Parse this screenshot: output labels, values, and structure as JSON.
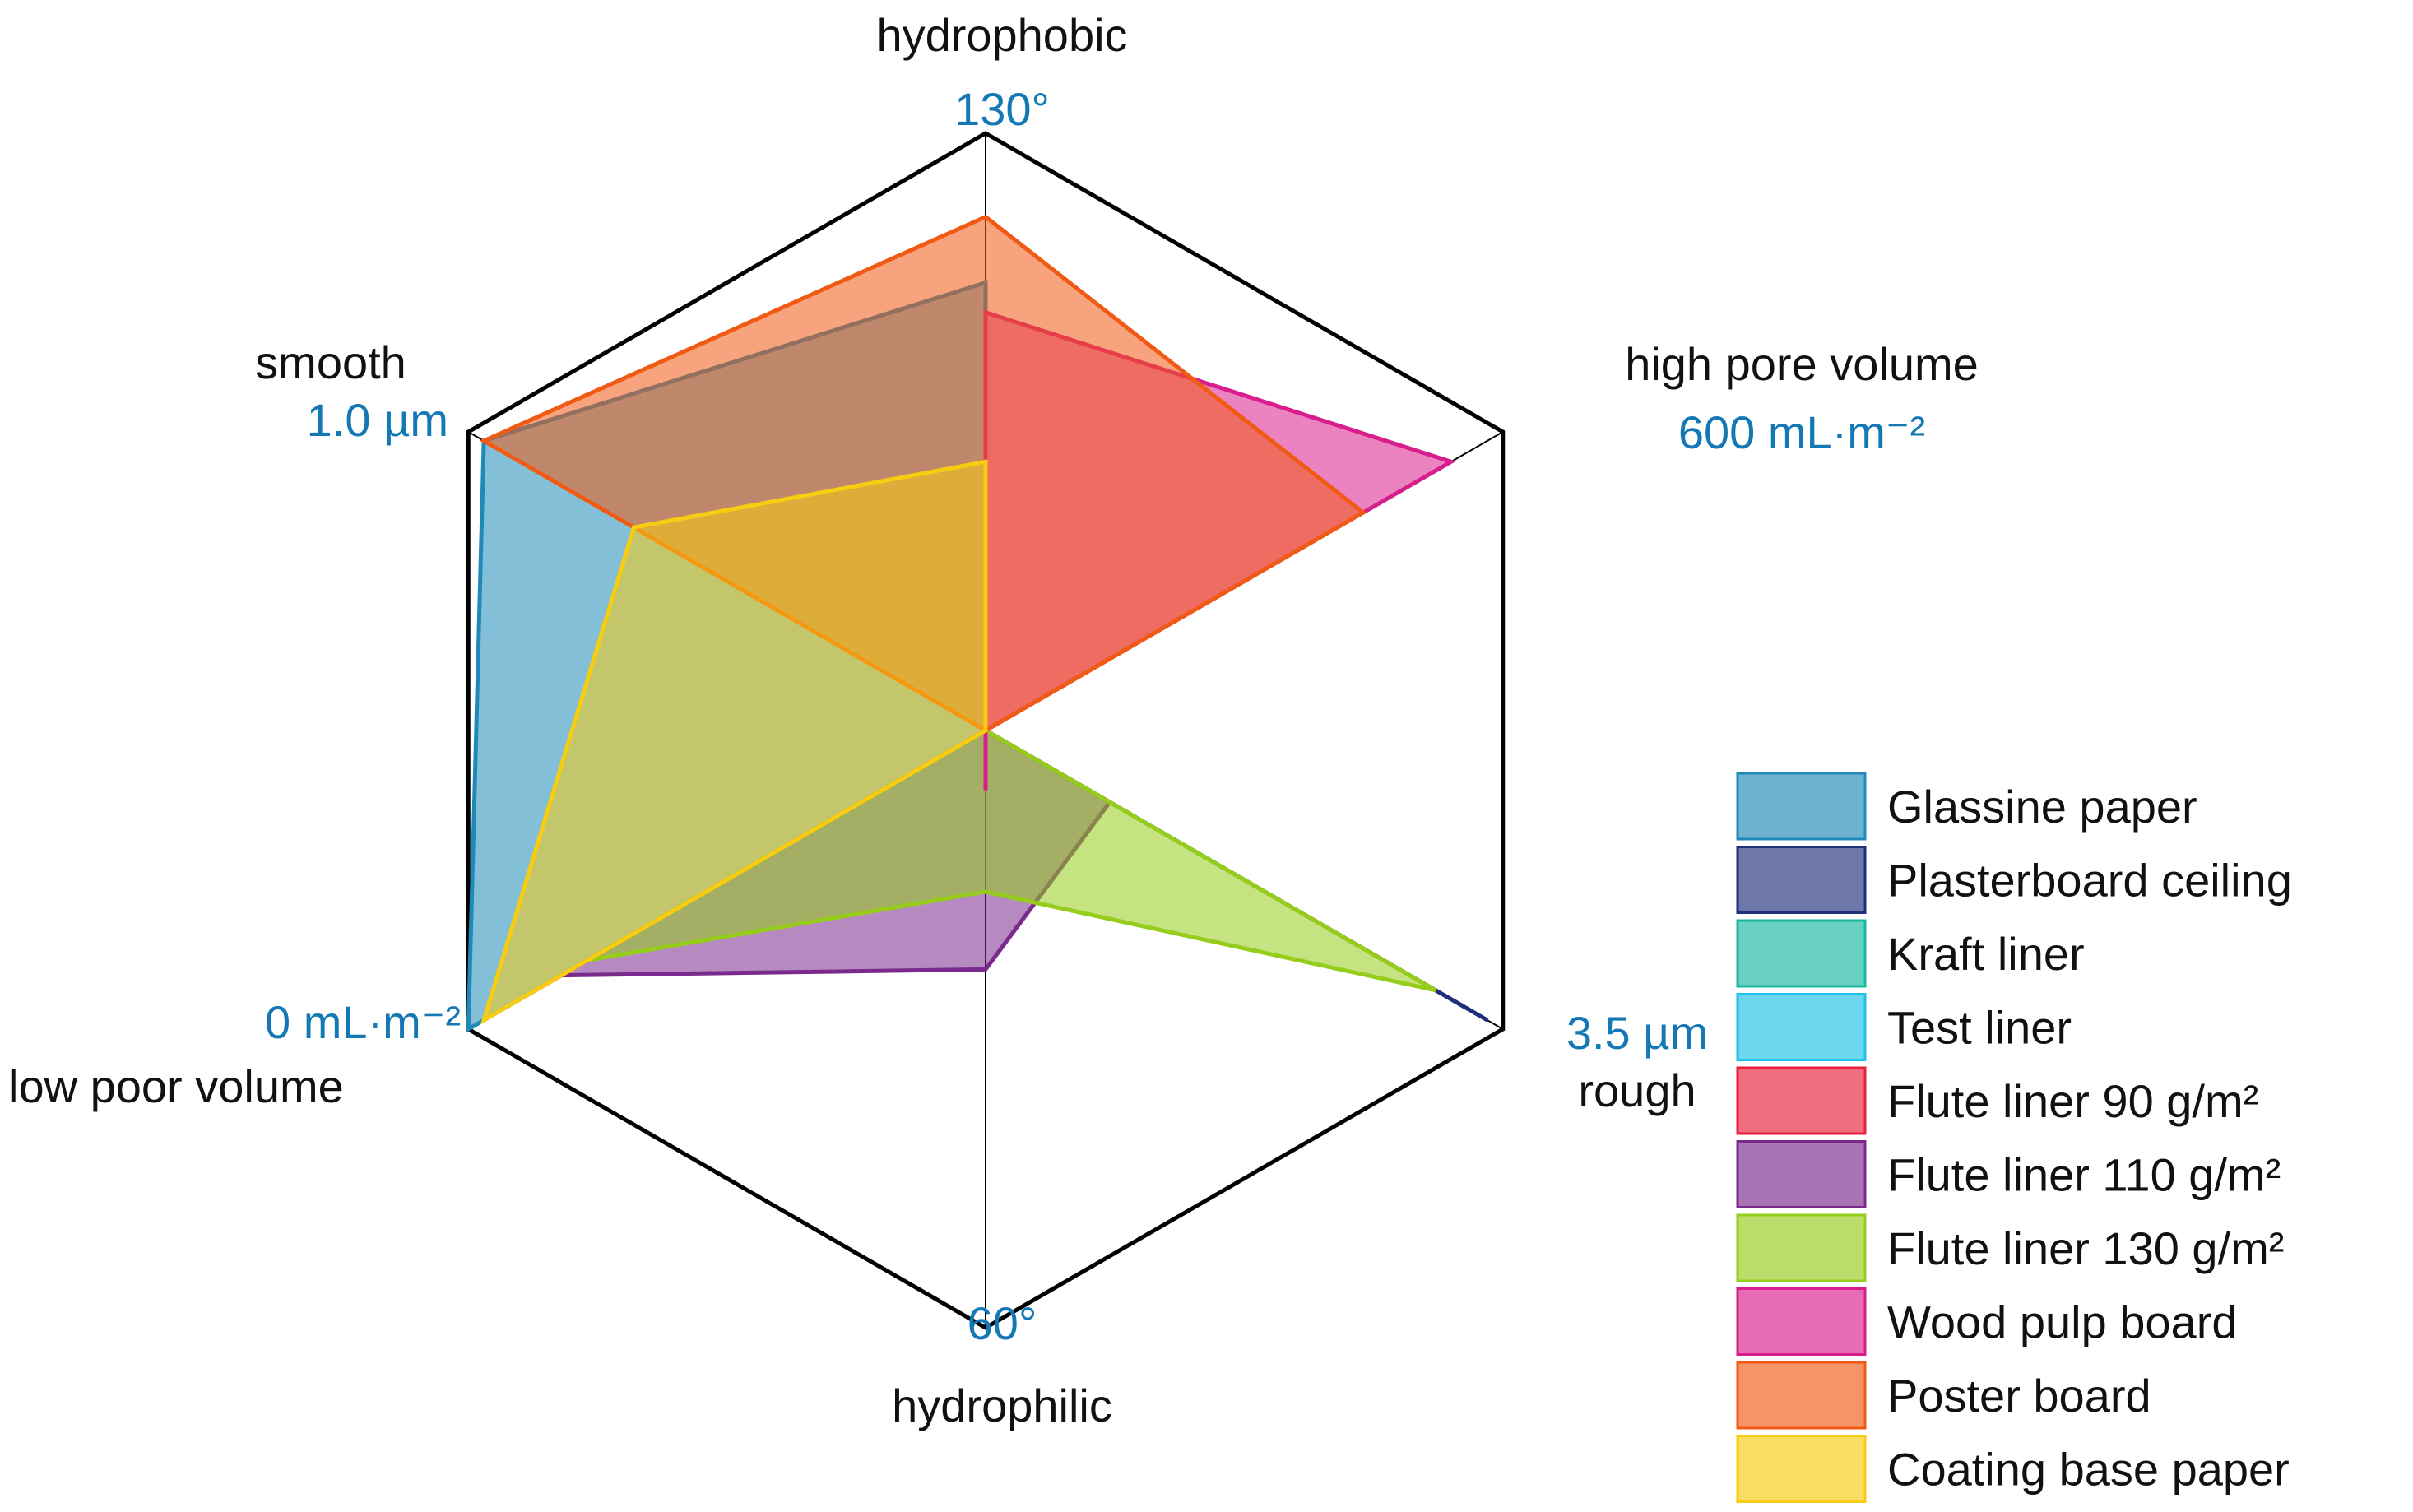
{
  "chart_data": {
    "type": "radar",
    "axes": [
      {
        "name": "hydrophobic",
        "value_label": "130°"
      },
      {
        "name": "high pore volume",
        "value_label": "600 mL·m⁻²"
      },
      {
        "name": "rough",
        "value_label": "3.5 µm"
      },
      {
        "name": "hydrophilic",
        "value_label": "60°"
      },
      {
        "name": "low poor volume",
        "value_label": "0 mL·m⁻²"
      },
      {
        "name": "smooth",
        "value_label": "1.0 µm"
      }
    ],
    "scale_note": "values are fraction of axis radius (0 = center, 1 = outer hexagon)",
    "series": [
      {
        "name": "Glassine paper",
        "color": "#1f8ab8",
        "values": [
          0.75,
          0,
          0,
          0,
          1.0,
          0.97
        ]
      },
      {
        "name": "Plasterboard ceiling",
        "color": "#1f2f7a",
        "values": [
          0,
          0,
          0.97,
          0,
          0.55,
          0
        ]
      },
      {
        "name": "Kraft liner",
        "color": "#18b8a0",
        "values": [
          0,
          0,
          0.58,
          0,
          0.55,
          0
        ]
      },
      {
        "name": "Test liner",
        "color": "#1ec2e8",
        "values": [
          0.55,
          0,
          0.5,
          0,
          0.78,
          0
        ]
      },
      {
        "name": "Flute liner 90 g/m²",
        "color": "#e8203c",
        "values": [
          0,
          0,
          0.29,
          0,
          0.9,
          0
        ]
      },
      {
        "name": "Flute liner 110 g/m²",
        "color": "#7a2a8c",
        "values": [
          0,
          0,
          0.24,
          0.4,
          0.82,
          0
        ]
      },
      {
        "name": "Flute liner 130 g/m²",
        "color": "#96cc1a",
        "values": [
          0,
          0,
          0.87,
          0.27,
          0.77,
          0
        ]
      },
      {
        "name": "Wood pulp board",
        "color": "#d81e8c",
        "values": [
          0.7,
          0.9,
          0,
          0.1,
          0,
          0
        ]
      },
      {
        "name": "Poster board",
        "color": "#f05a14",
        "values": [
          0.86,
          0.73,
          0,
          0,
          0,
          0.97
        ]
      },
      {
        "name": "Coating base paper",
        "color": "#f8cc10",
        "values": [
          0.45,
          0,
          0,
          0,
          0.97,
          0.68
        ]
      }
    ],
    "legend_position": "bottom-right"
  }
}
